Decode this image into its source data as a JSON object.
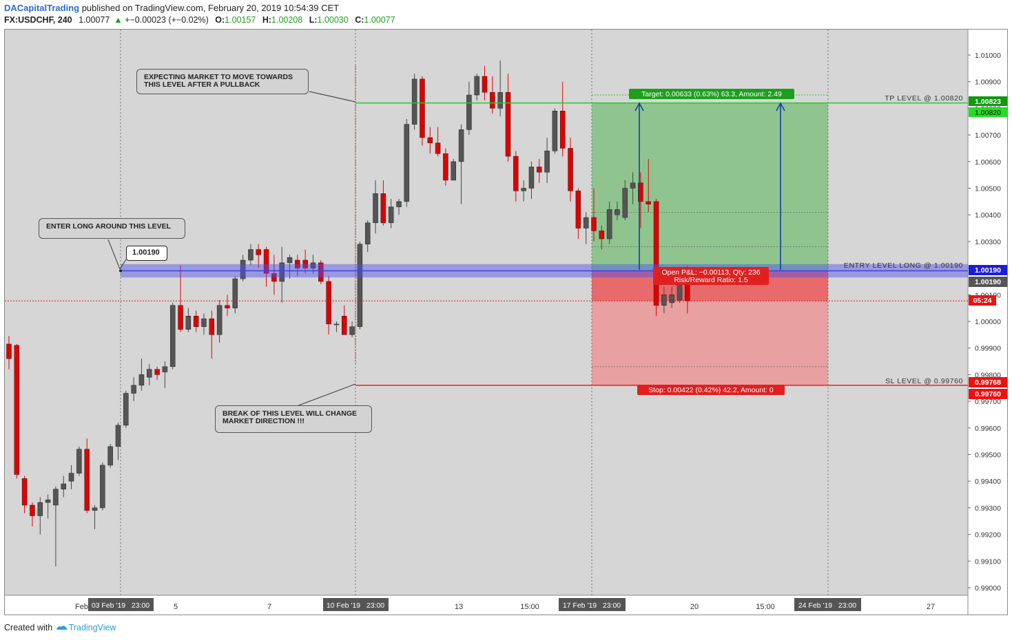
{
  "header": {
    "author": "DACapitalTrading",
    "published": " published on TradingView.com, February 20, 2019 10:54:39 CET",
    "symbol": "FX:USDCHF, 240",
    "price": "1.00077",
    "change_arrow": "▲",
    "change": "+−0.00023 (+−0.02%)",
    "o_label": "O:",
    "o": "1.00157",
    "h_label": "H:",
    "h": "1.00208",
    "l_label": "L:",
    "l": "1.00030",
    "c_label": "C:",
    "c": "1.00077"
  },
  "footer": {
    "created_with": "Created with",
    "brand": "TradingView"
  },
  "colors": {
    "bull": "#555555",
    "bear": "#e00000",
    "profit_zone": "#8fc48f",
    "loss_zone": "#e8a0a0",
    "entry": "#4040dd",
    "tp": "#22cc22",
    "sl": "#ee2222"
  },
  "annotations": {
    "enter_long": "ENTER LONG AROUND THIS LEVEL",
    "entry_bubble": "1.00190",
    "expecting": "EXPECTING MARKET TO MOVE TOWARDS\nTHIS LEVEL AFTER A PULLBACK",
    "break_level": "BREAK OF THIS LEVEL WILL CHANGE\nMARKET DIRECTION !!!",
    "tp_level": "TP LEVEL @ 1.00820",
    "entry_level": "ENTRY LEVEL LONG @ 1.00190",
    "sl_level": "SL LEVEL @ 0.99760",
    "target_label": "Target: 0.00633 (0.63%) 63.3, Amount: 2.49",
    "stop_label": "Stop: 0.00422 (0.42%) 42.2, Amount: 0",
    "pnl_line1": "Open P&L: −0.00113, Qty: 236",
    "pnl_line2": "Risk/Reward Ratio: 1.5"
  },
  "price_tags": {
    "tp_a": "1.00823",
    "tp_b": "1.00820",
    "entry": "1.00190",
    "entry_b": "1.00190",
    "current_hidden": "1.00100",
    "countdown": "05:24",
    "sl_a": "0.99768",
    "sl_b": "0.99760"
  },
  "x_axis": {
    "labels": [
      {
        "text": "Feb"
      },
      {
        "text": "5"
      },
      {
        "text": "7"
      },
      {
        "text": "13"
      },
      {
        "text": "15:00"
      },
      {
        "text": "20"
      },
      {
        "text": "15:00"
      },
      {
        "text": "27"
      }
    ],
    "boxes": [
      "03 Feb '19   23:00",
      "10 Feb '19   23:00",
      "17 Feb '19   23:00",
      "24 Feb '19   23:00"
    ]
  },
  "chart_data": {
    "type": "candlestick",
    "symbol": "FX:USDCHF",
    "timeframe": "240",
    "ylim": [
      0.9897,
      1.0104
    ],
    "y_ticks": [
      "1.01000",
      "1.00900",
      "1.00800",
      "1.00700",
      "1.00600",
      "1.00500",
      "1.00400",
      "1.00300",
      "1.00200",
      "1.00100",
      "1.00000",
      "0.99900",
      "0.99800",
      "0.99700",
      "0.99600",
      "0.99500",
      "0.99400",
      "0.99300",
      "0.99200",
      "0.99100",
      "0.99000"
    ],
    "levels": {
      "tp": 1.0082,
      "entry": 1.0019,
      "sl": 0.9976,
      "current": 1.00077
    },
    "ohlc": [
      [
        0.99915,
        0.99945,
        0.9982,
        0.9986
      ],
      [
        0.9991,
        0.99915,
        0.9941,
        0.99425
      ],
      [
        0.9941,
        0.9942,
        0.9928,
        0.9931
      ],
      [
        0.9931,
        0.9932,
        0.9923,
        0.9927
      ],
      [
        0.9927,
        0.9934,
        0.992,
        0.9932
      ],
      [
        0.9932,
        0.9935,
        0.9926,
        0.9933
      ],
      [
        0.9931,
        0.9938,
        0.9908,
        0.9937
      ],
      [
        0.9937,
        0.9942,
        0.9934,
        0.9939
      ],
      [
        0.994,
        0.9946,
        0.9937,
        0.9943
      ],
      [
        0.9943,
        0.9953,
        0.9942,
        0.9952
      ],
      [
        0.9952,
        0.9956,
        0.9928,
        0.9929
      ],
      [
        0.9929,
        0.9931,
        0.9922,
        0.993
      ],
      [
        0.993,
        0.9947,
        0.9929,
        0.9946
      ],
      [
        0.9946,
        0.9954,
        0.9945,
        0.9953
      ],
      [
        0.9953,
        0.9962,
        0.9948,
        0.9961
      ],
      [
        0.9961,
        0.9974,
        0.996,
        0.9973
      ],
      [
        0.9973,
        0.9979,
        0.997,
        0.9976
      ],
      [
        0.9976,
        0.9986,
        0.9974,
        0.998
      ],
      [
        0.9979,
        0.9984,
        0.9976,
        0.9982
      ],
      [
        0.9982,
        0.9983,
        0.9978,
        0.998
      ],
      [
        0.9981,
        0.9985,
        0.9975,
        0.9983
      ],
      [
        0.9983,
        1.0007,
        0.9982,
        1.0006
      ],
      [
        1.0006,
        1.0021,
        0.9996,
        0.9997
      ],
      [
        0.9997,
        1.0005,
        0.9996,
        1.0002
      ],
      [
        1.0002,
        1.0004,
        0.9996,
        0.9998
      ],
      [
        0.9998,
        1.0003,
        0.9995,
        1.0001
      ],
      [
        1.0001,
        1.0004,
        0.9986,
        0.9995
      ],
      [
        0.9995,
        1.0008,
        0.9992,
        1.0006
      ],
      [
        1.0006,
        1.001,
        1.0002,
        1.0005
      ],
      [
        1.0005,
        1.0017,
        1.0003,
        1.0016
      ],
      [
        1.0016,
        1.0025,
        1.0015,
        1.0023
      ],
      [
        1.0023,
        1.0029,
        1.0021,
        1.0027
      ],
      [
        1.0027,
        1.0029,
        1.002,
        1.0025
      ],
      [
        1.0027,
        1.0028,
        1.0013,
        1.0018
      ],
      [
        1.0018,
        1.0025,
        1.001,
        1.0015
      ],
      [
        1.0015,
        1.0028,
        1.0007,
        1.0022
      ],
      [
        1.0022,
        1.0025,
        1.0016,
        1.0024
      ],
      [
        1.0023,
        1.0025,
        1.0017,
        1.002
      ],
      [
        1.0023,
        1.0027,
        1.0018,
        1.002
      ],
      [
        1.002,
        1.0025,
        1.0018,
        1.0022
      ],
      [
        1.0022,
        1.0023,
        1.0014,
        1.0015
      ],
      [
        1.0015,
        1.0017,
        0.9995,
        0.9999
      ],
      [
        0.9999,
        1.0,
        0.9996,
        0.9999
      ],
      [
        1.0002,
        1.0006,
        0.9996,
        0.9995
      ],
      [
        0.9995,
        1.0,
        0.9994,
        0.9998
      ],
      [
        0.9998,
        1.003,
        0.9997,
        1.0029
      ],
      [
        1.0029,
        1.0038,
        1.0026,
        1.0037
      ],
      [
        1.0037,
        1.0053,
        1.0033,
        1.0048
      ],
      [
        1.0048,
        1.0053,
        1.0036,
        1.0037
      ],
      [
        1.0037,
        1.0046,
        1.0035,
        1.0043
      ],
      [
        1.0043,
        1.0046,
        1.004,
        1.0045
      ],
      [
        1.0045,
        1.0076,
        1.0043,
        1.0074
      ],
      [
        1.0074,
        1.0093,
        1.0072,
        1.0091
      ],
      [
        1.0091,
        1.0092,
        1.0066,
        1.0069
      ],
      [
        1.0069,
        1.0073,
        1.0063,
        1.0067
      ],
      [
        1.0067,
        1.0073,
        1.0062,
        1.0063
      ],
      [
        1.0063,
        1.0065,
        1.0051,
        1.0053
      ],
      [
        1.0053,
        1.0061,
        1.0053,
        1.006
      ],
      [
        1.006,
        1.0074,
        1.0044,
        1.0072
      ],
      [
        1.0072,
        1.009,
        1.007,
        1.0085
      ],
      [
        1.0085,
        1.0093,
        1.0083,
        1.0092
      ],
      [
        1.0092,
        1.0096,
        1.0083,
        1.0086
      ],
      [
        1.0086,
        1.0092,
        1.0078,
        1.008
      ],
      [
        1.008,
        1.0098,
        1.0077,
        1.0086
      ],
      [
        1.0086,
        1.0093,
        1.006,
        1.0062
      ],
      [
        1.0062,
        1.0064,
        1.0045,
        1.0049
      ],
      [
        1.0049,
        1.0053,
        1.0045,
        1.005
      ],
      [
        1.005,
        1.006,
        1.0046,
        1.0058
      ],
      [
        1.0058,
        1.0061,
        1.0052,
        1.0056
      ],
      [
        1.0056,
        1.0069,
        1.0052,
        1.0064
      ],
      [
        1.0064,
        1.008,
        1.0063,
        1.0079
      ],
      [
        1.0079,
        1.009,
        1.0062,
        1.0065
      ],
      [
        1.0065,
        1.0069,
        1.0045,
        1.0049
      ],
      [
        1.0049,
        1.005,
        1.0031,
        1.0035
      ],
      [
        1.0035,
        1.0041,
        1.0029,
        1.0039
      ],
      [
        1.0039,
        1.005,
        1.003,
        1.0034
      ],
      [
        1.0034,
        1.0036,
        1.0027,
        1.0031
      ],
      [
        1.0031,
        1.0045,
        1.0029,
        1.0042
      ],
      [
        1.004,
        1.0045,
        1.0038,
        1.0042
      ],
      [
        1.0039,
        1.0053,
        1.0038,
        1.005
      ],
      [
        1.005,
        1.0056,
        1.0044,
        1.0052
      ],
      [
        1.0052,
        1.0056,
        1.0035,
        1.0045
      ],
      [
        1.0045,
        1.0061,
        1.0041,
        1.0044
      ],
      [
        1.0045,
        1.0046,
        1.0002,
        1.0006
      ],
      [
        1.0006,
        1.0013,
        1.0003,
        1.001
      ],
      [
        1.0007,
        1.0013,
        1.0005,
        1.001
      ],
      [
        1.0008,
        1.0016,
        1.0007,
        1.0016
      ],
      [
        1.0016,
        1.0021,
        1.0003,
        1.00077
      ]
    ]
  }
}
